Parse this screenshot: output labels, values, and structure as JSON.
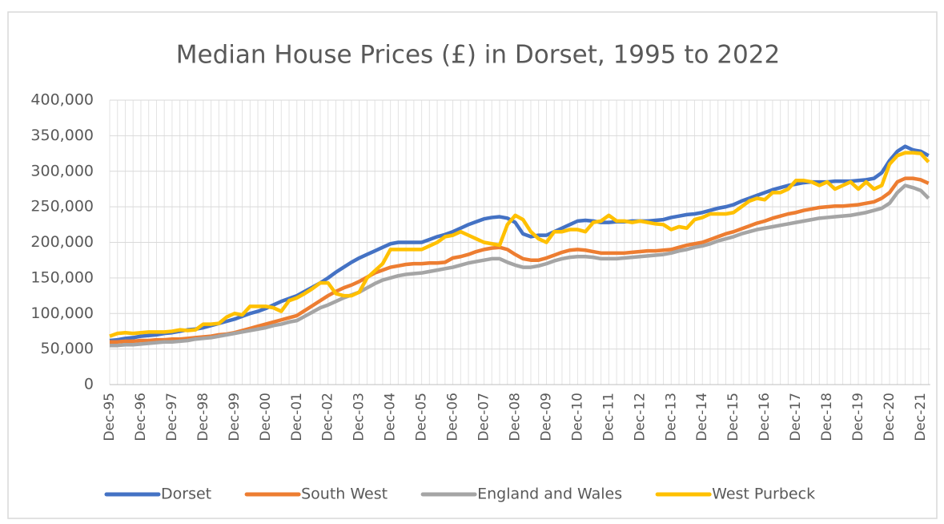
{
  "chart_data": {
    "type": "line",
    "title": "Median House Prices (£) in Dorset, 1995 to 2022",
    "categories": [
      "Dec-95",
      null,
      null,
      null,
      "Dec-96",
      null,
      null,
      null,
      "Dec-97",
      null,
      null,
      null,
      "Dec-98",
      null,
      null,
      null,
      "Dec-99",
      null,
      null,
      null,
      "Dec-00",
      null,
      null,
      null,
      "Dec-01",
      null,
      null,
      null,
      "Dec-02",
      null,
      null,
      null,
      "Dec-03",
      null,
      null,
      null,
      "Dec-04",
      null,
      null,
      null,
      "Dec-05",
      null,
      null,
      null,
      "Dec-06",
      null,
      null,
      null,
      "Dec-07",
      null,
      null,
      null,
      "Dec-08",
      null,
      null,
      null,
      "Dec-09",
      null,
      null,
      null,
      "Dec-10",
      null,
      null,
      null,
      "Dec-11",
      null,
      null,
      null,
      "Dec-12",
      null,
      null,
      null,
      "Dec-13",
      null,
      null,
      null,
      "Dec-14",
      null,
      null,
      null,
      "Dec-15",
      null,
      null,
      null,
      "Dec-16",
      null,
      null,
      null,
      "Dec-17",
      null,
      null,
      null,
      "Dec-18",
      null,
      null,
      null,
      "Dec-19",
      null,
      null,
      null,
      "Dec-20",
      null,
      null,
      null,
      "Dec-21",
      null
    ],
    "series": [
      {
        "name": "Dorset",
        "color": "#4472c4",
        "values": [
          62000,
          63000,
          65000,
          66000,
          68000,
          69000,
          70000,
          72000,
          73000,
          75000,
          77000,
          78000,
          80000,
          83000,
          86000,
          89000,
          92000,
          96000,
          100000,
          103000,
          107000,
          112000,
          117000,
          121000,
          125000,
          131000,
          137000,
          143000,
          150000,
          158000,
          165000,
          172000,
          178000,
          183000,
          188000,
          193000,
          198000,
          200000,
          200000,
          200000,
          200000,
          204000,
          208000,
          211000,
          215000,
          220000,
          225000,
          229000,
          233000,
          235000,
          236000,
          234000,
          228000,
          212000,
          208000,
          210000,
          210000,
          215000,
          220000,
          225000,
          230000,
          231000,
          230000,
          228000,
          228000,
          229000,
          229000,
          230000,
          230000,
          230000,
          231000,
          232000,
          235000,
          237000,
          239000,
          240000,
          242000,
          245000,
          248000,
          250000,
          253000,
          258000,
          262000,
          266000,
          270000,
          274000,
          277000,
          280000,
          282000,
          284000,
          285000,
          285000,
          285000,
          286000,
          286000,
          286000,
          287000,
          288000,
          290000,
          298000,
          315000,
          328000,
          335000,
          330000,
          328000,
          322000
        ]
      },
      {
        "name": "South West",
        "color": "#ed7d31",
        "values": [
          60000,
          60000,
          61000,
          61000,
          62000,
          62000,
          63000,
          63000,
          64000,
          64000,
          65000,
          66000,
          67000,
          68000,
          70000,
          71000,
          73000,
          76000,
          79000,
          82000,
          85000,
          88000,
          91000,
          94000,
          97000,
          104000,
          111000,
          118000,
          125000,
          131000,
          136000,
          140000,
          145000,
          151000,
          157000,
          161000,
          165000,
          167000,
          169000,
          170000,
          170000,
          171000,
          171000,
          172000,
          178000,
          180000,
          183000,
          187000,
          190000,
          192000,
          193000,
          190000,
          183000,
          177000,
          175000,
          175000,
          178000,
          182000,
          186000,
          189000,
          190000,
          189000,
          187000,
          185000,
          185000,
          185000,
          185000,
          186000,
          187000,
          188000,
          188000,
          189000,
          190000,
          193000,
          196000,
          198000,
          200000,
          204000,
          208000,
          212000,
          215000,
          219000,
          223000,
          227000,
          230000,
          234000,
          237000,
          240000,
          242000,
          245000,
          247000,
          249000,
          250000,
          251000,
          251000,
          252000,
          253000,
          255000,
          257000,
          262000,
          270000,
          285000,
          290000,
          290000,
          288000,
          283000
        ]
      },
      {
        "name": "England and Wales",
        "color": "#a5a5a5",
        "values": [
          55000,
          55000,
          56000,
          56000,
          57000,
          58000,
          59000,
          60000,
          60000,
          61000,
          62000,
          64000,
          65000,
          66000,
          68000,
          70000,
          72000,
          74000,
          76000,
          78000,
          80000,
          83000,
          85000,
          88000,
          90000,
          96000,
          102000,
          108000,
          112000,
          117000,
          122000,
          126000,
          130000,
          136000,
          142000,
          147000,
          150000,
          153000,
          155000,
          156000,
          157000,
          159000,
          161000,
          163000,
          165000,
          168000,
          171000,
          173000,
          175000,
          177000,
          177000,
          172000,
          168000,
          165000,
          165000,
          167000,
          170000,
          174000,
          177000,
          179000,
          180000,
          180000,
          179000,
          177000,
          177000,
          177000,
          178000,
          179000,
          180000,
          181000,
          182000,
          183000,
          185000,
          188000,
          190000,
          193000,
          195000,
          198000,
          202000,
          205000,
          208000,
          212000,
          215000,
          218000,
          220000,
          222000,
          224000,
          226000,
          228000,
          230000,
          232000,
          234000,
          235000,
          236000,
          237000,
          238000,
          240000,
          242000,
          245000,
          248000,
          255000,
          270000,
          280000,
          277000,
          273000,
          262000
        ]
      },
      {
        "name": "West Purbeck",
        "color": "#ffc000",
        "values": [
          68000,
          72000,
          73000,
          72000,
          73000,
          74000,
          74000,
          74000,
          75000,
          77000,
          76000,
          77000,
          85000,
          85000,
          86000,
          95000,
          100000,
          98000,
          110000,
          110000,
          110000,
          108000,
          103000,
          118000,
          122000,
          128000,
          135000,
          143000,
          143000,
          128000,
          125000,
          125000,
          130000,
          150000,
          160000,
          170000,
          190000,
          190000,
          190000,
          190000,
          190000,
          195000,
          200000,
          208000,
          210000,
          215000,
          210000,
          205000,
          200000,
          198000,
          196000,
          225000,
          238000,
          232000,
          215000,
          205000,
          200000,
          215000,
          215000,
          218000,
          218000,
          215000,
          228000,
          230000,
          238000,
          230000,
          230000,
          228000,
          230000,
          228000,
          226000,
          225000,
          218000,
          222000,
          220000,
          232000,
          235000,
          240000,
          240000,
          240000,
          242000,
          250000,
          258000,
          262000,
          260000,
          270000,
          270000,
          275000,
          287000,
          287000,
          285000,
          280000,
          285000,
          275000,
          280000,
          285000,
          275000,
          285000,
          275000,
          280000,
          310000,
          322000,
          326000,
          326000,
          325000,
          313000
        ]
      }
    ],
    "ylim": [
      0,
      400000
    ],
    "yticks": [
      0,
      {
        "value": 50000,
        "label": "50,000"
      },
      {
        "value": 100000,
        "label": "100,000"
      },
      {
        "value": 150000,
        "label": "150,000"
      },
      {
        "value": 200000,
        "label": "200,000"
      },
      {
        "value": 250000,
        "label": "250,000"
      },
      {
        "value": 300000,
        "label": "300,000"
      },
      {
        "value": 350000,
        "label": "350,000"
      },
      {
        "value": 400000,
        "label": "400,000"
      }
    ],
    "grid": true,
    "legend": "bottom"
  }
}
